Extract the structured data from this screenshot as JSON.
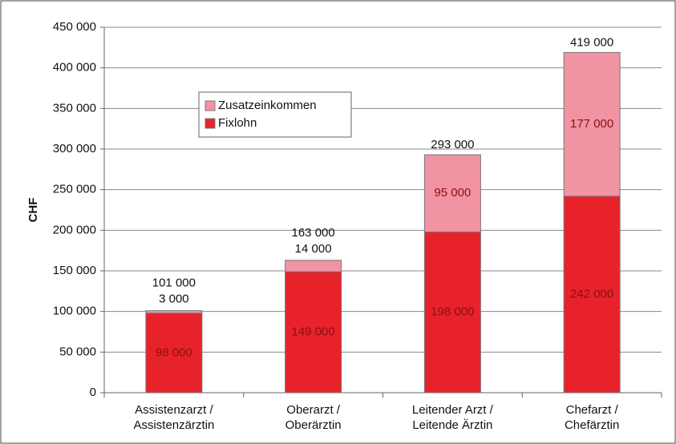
{
  "chart_data": {
    "type": "stacked_bar",
    "y_label": "CHF",
    "categories": [
      "Assistenzarzt /\nAssistenzärztin",
      "Oberarzt /\nOberärztin",
      "Leitender Arzt /\nLeitende Ärztin",
      "Chefarzt /\nChefärztin"
    ],
    "series": [
      {
        "name": "Fixlohn",
        "color": "#e8222b",
        "values": [
          98000,
          149000,
          198000,
          242000
        ],
        "value_labels": [
          "98 000",
          "149 000",
          "198 000",
          "242 000"
        ]
      },
      {
        "name": "Zusatzeinkommen",
        "color": "#f193a3",
        "values": [
          3000,
          14000,
          95000,
          177000
        ],
        "value_labels": [
          "3 000",
          "14 000",
          "95 000",
          "177 000"
        ]
      }
    ],
    "total_labels": [
      "101 000",
      "163 000",
      "293 000",
      "419 000"
    ],
    "ylim": [
      0,
      450000
    ],
    "yticks": [
      {
        "value": 0,
        "label": "0"
      },
      {
        "value": 50000,
        "label": "50 000"
      },
      {
        "value": 100000,
        "label": "100 000"
      },
      {
        "value": 150000,
        "label": "150 000"
      },
      {
        "value": 200000,
        "label": "200 000"
      },
      {
        "value": 250000,
        "label": "250 000"
      },
      {
        "value": 300000,
        "label": "300 000"
      },
      {
        "value": 350000,
        "label": "350 000"
      },
      {
        "value": 400000,
        "label": "400 000"
      },
      {
        "value": 450000,
        "label": "450 000"
      }
    ],
    "grid": true,
    "legend": "upper left"
  }
}
